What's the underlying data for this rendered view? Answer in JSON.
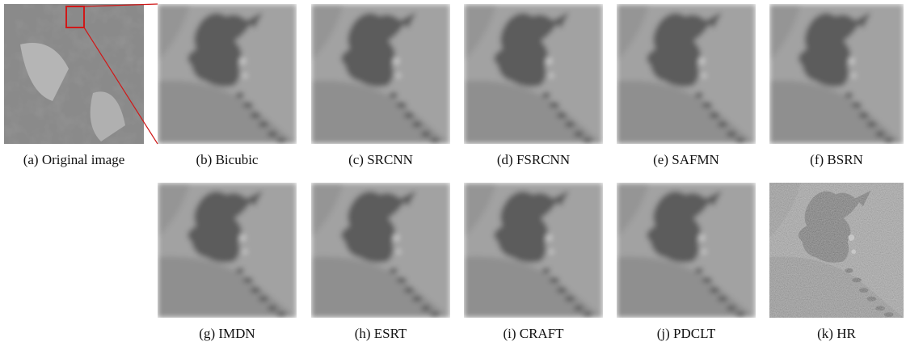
{
  "figure": {
    "panels": [
      {
        "caption": "(a) Original image"
      },
      {
        "caption": "(b) Bicubic"
      },
      {
        "caption": "(c) SRCNN"
      },
      {
        "caption": "(d) FSRCNN"
      },
      {
        "caption": "(e) SAFMN"
      },
      {
        "caption": "(f) BSRN"
      },
      {
        "caption": "(g) IMDN"
      },
      {
        "caption": "(h) ESRT"
      },
      {
        "caption": "(i) CRAFT"
      },
      {
        "caption": "(j) PDCLT"
      },
      {
        "caption": "(k) HR"
      }
    ]
  }
}
